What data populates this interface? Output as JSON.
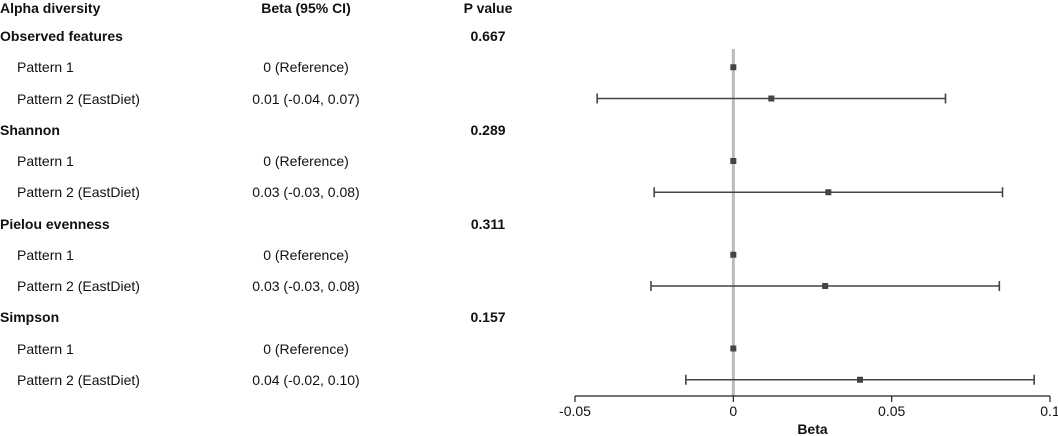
{
  "chart_data": {
    "type": "forest",
    "headers": {
      "label": "Alpha diversity",
      "beta": "Beta (95% CI)",
      "p": "P value"
    },
    "groups": [
      {
        "name": "Observed features",
        "p": "0.667",
        "rows": [
          {
            "label": "Pattern 1",
            "ci_text": "0 (Reference)",
            "estimate": 0,
            "lower": null,
            "upper": null
          },
          {
            "label": "Pattern 2 (EastDiet)",
            "ci_text": "0.01 (-0.04, 0.07)",
            "estimate": 0.012,
            "lower": -0.043,
            "upper": 0.067
          }
        ]
      },
      {
        "name": "Shannon",
        "p": "0.289",
        "rows": [
          {
            "label": "Pattern 1",
            "ci_text": "0 (Reference)",
            "estimate": 0,
            "lower": null,
            "upper": null
          },
          {
            "label": "Pattern 2 (EastDiet)",
            "ci_text": "0.03 (-0.03, 0.08)",
            "estimate": 0.03,
            "lower": -0.025,
            "upper": 0.085
          }
        ]
      },
      {
        "name": "Pielou evenness",
        "p": "0.311",
        "rows": [
          {
            "label": "Pattern 1",
            "ci_text": "0 (Reference)",
            "estimate": 0,
            "lower": null,
            "upper": null
          },
          {
            "label": "Pattern 2 (EastDiet)",
            "ci_text": "0.03 (-0.03, 0.08)",
            "estimate": 0.029,
            "lower": -0.026,
            "upper": 0.084
          }
        ]
      },
      {
        "name": "Simpson",
        "p": "0.157",
        "rows": [
          {
            "label": "Pattern 1",
            "ci_text": "0 (Reference)",
            "estimate": 0,
            "lower": null,
            "upper": null
          },
          {
            "label": "Pattern 2 (EastDiet)",
            "ci_text": "0.04 (-0.02, 0.10)",
            "estimate": 0.04,
            "lower": -0.015,
            "upper": 0.095
          }
        ]
      }
    ],
    "xlabel": "Beta",
    "xlim": [
      -0.05,
      0.1
    ],
    "xticks": [
      -0.05,
      0,
      0.05,
      0.1
    ],
    "xtick_labels": [
      "-0.05",
      "0",
      "0.05",
      "0.1"
    ],
    "reference_line": 0,
    "colors": {
      "marker": "#444444",
      "reference_line": "#bbbbbb",
      "axis": "#222222"
    }
  }
}
